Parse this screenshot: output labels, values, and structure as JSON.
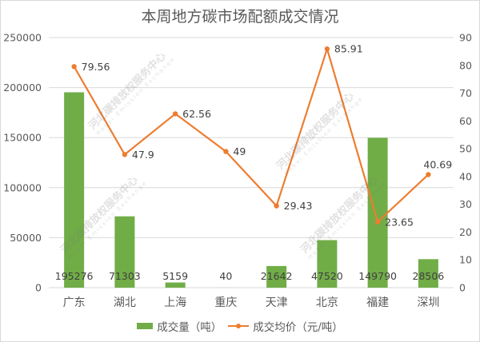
{
  "title": "本周地方碳市场配额成交情况",
  "legend": {
    "bar_label": "成交量（吨）",
    "line_label": "成交均价（元/吨）"
  },
  "watermark": {
    "text": "河北碳排放权服务中心",
    "subtext": "Hebei Emission Exchange"
  },
  "colors": {
    "bar": "#70ad47",
    "line": "#ed7d31",
    "grid": "#d9d9d9",
    "text": "#595959"
  },
  "chart_data": {
    "type": "bar",
    "title": "本周地方碳市场配额成交情况",
    "categories": [
      "广东",
      "湖北",
      "上海",
      "重庆",
      "天津",
      "北京",
      "福建",
      "深圳"
    ],
    "series": [
      {
        "name": "成交量（吨）",
        "type": "bar",
        "axis": "left",
        "values": [
          195276,
          71303,
          5159,
          40,
          21642,
          47520,
          149790,
          28506
        ]
      },
      {
        "name": "成交均价（元/吨）",
        "type": "line",
        "axis": "right",
        "values": [
          79.56,
          47.9,
          62.56,
          49,
          29.43,
          85.91,
          23.65,
          40.69
        ]
      }
    ],
    "left_axis": {
      "ylim": [
        0,
        250000
      ],
      "ticks": [
        "0",
        "50000",
        "100000",
        "150000",
        "200000",
        "250000"
      ]
    },
    "right_axis": {
      "ylim": [
        0,
        90
      ],
      "ticks": [
        "0",
        "10",
        "20",
        "30",
        "40",
        "50",
        "60",
        "70",
        "80",
        "90"
      ]
    },
    "xlabel": "",
    "ylabel": "",
    "grid": true,
    "legend_position": "bottom"
  }
}
